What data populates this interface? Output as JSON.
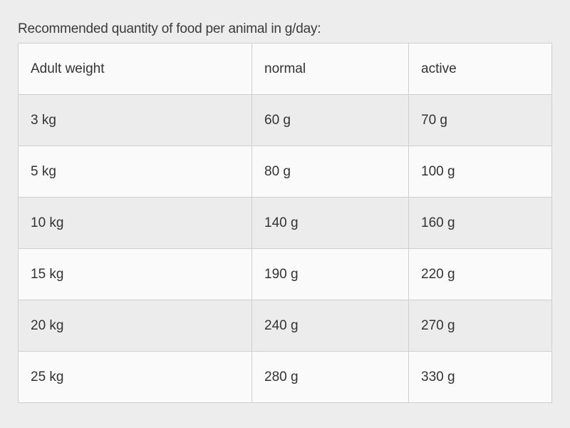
{
  "caption": "Recommended quantity of food per animal in g/day:",
  "table": {
    "headers": [
      "Adult weight",
      "normal",
      "active"
    ],
    "rows": [
      [
        "3 kg",
        "60 g",
        "70 g"
      ],
      [
        "5 kg",
        "80 g",
        "100 g"
      ],
      [
        "10 kg",
        "140 g",
        "160 g"
      ],
      [
        "15 kg",
        "190 g",
        "220 g"
      ],
      [
        "20 kg",
        "240 g",
        "270 g"
      ],
      [
        "25 kg",
        "280 g",
        "330 g"
      ]
    ]
  },
  "colors": {
    "page_background": "#ededed",
    "row_light": "#fafafa",
    "row_shaded": "#ececec",
    "border": "#cfcfcf",
    "text": "#333333"
  }
}
